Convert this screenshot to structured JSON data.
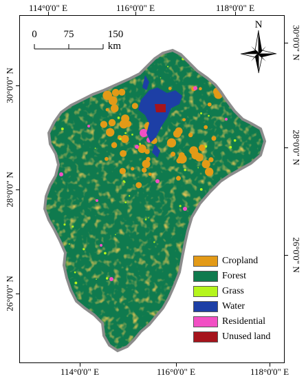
{
  "longitude_labels": [
    "114°0'0\" E",
    "116°0'0\" E",
    "118°0'0\" E"
  ],
  "latitude_labels": [
    "30°0'0\" N",
    "28°0'0\" N",
    "26°0'0\" N"
  ],
  "scale_bar": {
    "ticks": [
      "0",
      "75",
      "150 km"
    ]
  },
  "north_arrow": {
    "label": "N"
  },
  "legend": [
    {
      "label": "Cropland",
      "color": "#e39a17"
    },
    {
      "label": "Forest",
      "color": "#0f7a4e"
    },
    {
      "label": "Grass",
      "color": "#b5f51c"
    },
    {
      "label": "Water",
      "color": "#1d3fa6"
    },
    {
      "label": "Residential",
      "color": "#f24fc4"
    },
    {
      "label": "Unused land",
      "color": "#a6141c"
    }
  ],
  "colors": {
    "outline": "#8c8c8c",
    "frame": "#000000"
  }
}
